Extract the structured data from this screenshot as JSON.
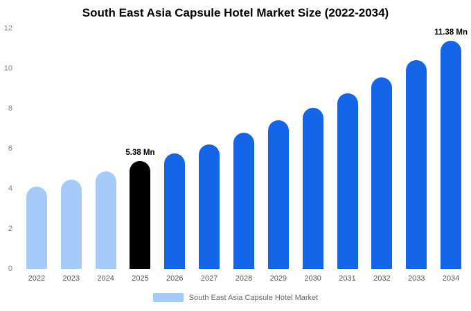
{
  "title": "South East Asia Capsule Hotel Market Size (2022-2034)",
  "chart_data": {
    "type": "bar",
    "title": "South East Asia Capsule Hotel Market Size (2022-2034)",
    "categories": [
      "2022",
      "2023",
      "2024",
      "2025",
      "2026",
      "2027",
      "2028",
      "2029",
      "2030",
      "2031",
      "2032",
      "2033",
      "2034"
    ],
    "values": [
      4.1,
      4.45,
      4.85,
      5.38,
      5.75,
      6.2,
      6.8,
      7.4,
      8.05,
      8.75,
      9.55,
      10.4,
      11.38
    ],
    "unit": "Mn",
    "color_roles": [
      "past",
      "past",
      "past",
      "current",
      "forecast",
      "forecast",
      "forecast",
      "forecast",
      "forecast",
      "forecast",
      "forecast",
      "forecast",
      "forecast"
    ],
    "palette": {
      "past": "#a6cbf8",
      "current": "#000000",
      "forecast": "#1565e8"
    },
    "ylim": [
      0,
      12
    ],
    "yticks": [
      0,
      2,
      4,
      6,
      8,
      10,
      12
    ],
    "grid": "off",
    "annotations": [
      {
        "category": "2025",
        "text": "5.38 Mn"
      },
      {
        "category": "2034",
        "text": "11.38 Mn"
      }
    ],
    "legend": {
      "label": "South East Asia Capsule Hotel Market",
      "swatch_color": "#a6cbf8",
      "position": "bottom"
    }
  }
}
